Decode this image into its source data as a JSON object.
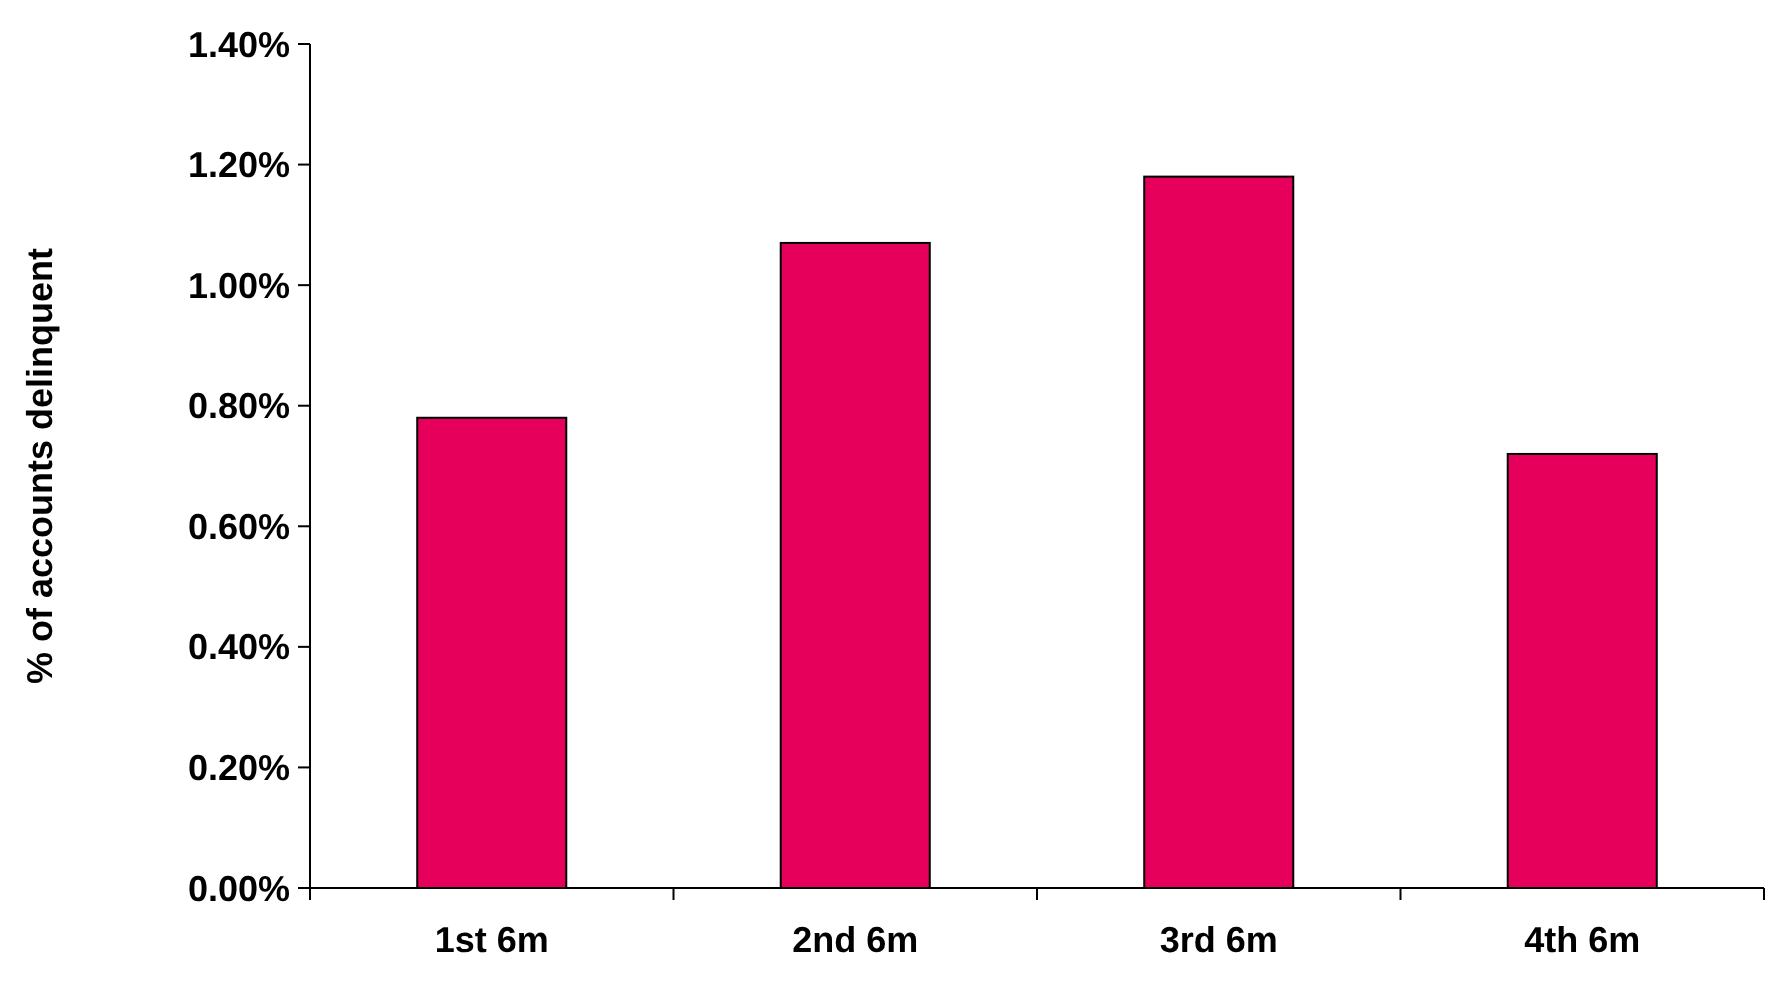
{
  "chart_data": {
    "type": "bar",
    "ylabel": "% of accounts delinquent",
    "categories": [
      "1st 6m",
      "2nd 6m",
      "3rd 6m",
      "4th 6m"
    ],
    "values": [
      0.78,
      1.07,
      1.18,
      0.72
    ],
    "color": "#e6005c",
    "ylim": [
      0,
      1.4
    ],
    "yticks": [
      {
        "value": 0,
        "label": "0.00%"
      },
      {
        "value": 0.2,
        "label": "0.20%"
      },
      {
        "value": 0.4,
        "label": "0.40%"
      },
      {
        "value": 0.6,
        "label": "0.60%"
      },
      {
        "value": 0.8,
        "label": "0.80%"
      },
      {
        "value": 1,
        "label": "1.00%"
      },
      {
        "value": 1.2,
        "label": "1.20%"
      },
      {
        "value": 1.4,
        "label": "1.40%"
      }
    ],
    "grid": false
  }
}
